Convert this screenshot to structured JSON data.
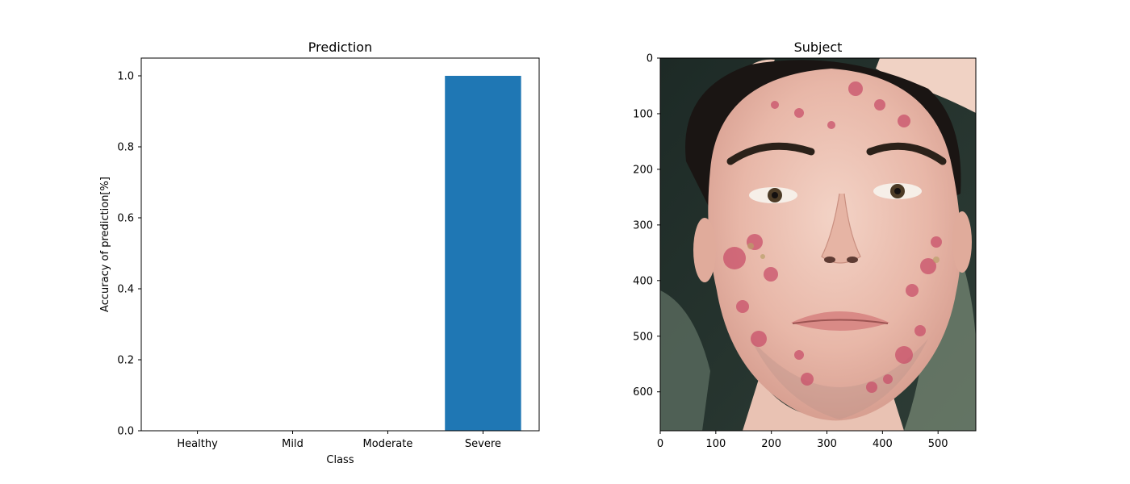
{
  "chart_data": [
    {
      "type": "bar",
      "title": "Prediction",
      "xlabel": "Class",
      "ylabel": "Accuracy of prediction[%]",
      "categories": [
        "Healthy",
        "Mild",
        "Moderate",
        "Severe"
      ],
      "values": [
        0.0,
        0.0,
        0.0,
        1.0
      ],
      "ylim": [
        0,
        1.05
      ],
      "yticks": [
        0.0,
        0.2,
        0.4,
        0.6,
        0.8,
        1.0
      ],
      "yticklabels": [
        "0.0",
        "0.2",
        "0.4",
        "0.6",
        "0.8",
        "1.0"
      ],
      "bar_color": "#1f77b4",
      "grid": false,
      "legend": "none"
    },
    {
      "type": "image",
      "title": "Subject",
      "description_icon": "face-photo",
      "xlim": [
        0,
        568
      ],
      "ylim": [
        670,
        0
      ],
      "xticks": [
        0,
        100,
        200,
        300,
        400,
        500
      ],
      "xticklabels": [
        "0",
        "100",
        "200",
        "300",
        "400",
        "500"
      ],
      "yticks": [
        0,
        100,
        200,
        300,
        400,
        500,
        600
      ],
      "yticklabels": [
        "0",
        "100",
        "200",
        "300",
        "400",
        "500",
        "600"
      ],
      "grid": false
    }
  ]
}
